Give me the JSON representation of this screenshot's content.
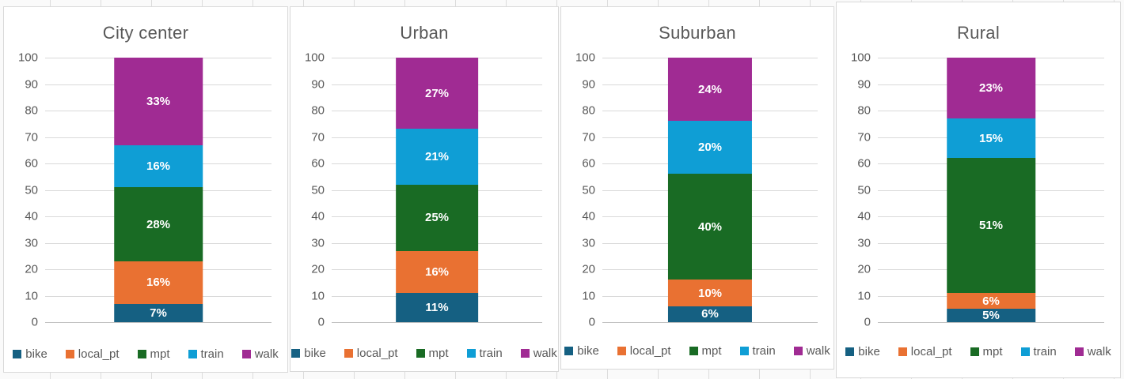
{
  "styles": {
    "title_color": "#595959",
    "axis_label_color": "#595959",
    "legend_text_color": "#595959",
    "data_label_color": "#FFFFFF",
    "gridline_color": "#D9D9D9",
    "zero_line_color": "#BFBFBF",
    "card_border_color": "#D9D9D9",
    "card_background": "#FFFFFF"
  },
  "series_colors": {
    "bike": "#156082",
    "local_pt": "#E97132",
    "mpt": "#196B24",
    "train": "#0F9ED5",
    "walk": "#A02B93"
  },
  "y_axis": {
    "ticks": [
      "100",
      "90",
      "80",
      "70",
      "60",
      "50",
      "40",
      "30",
      "20",
      "10",
      "0"
    ]
  },
  "chart_data": [
    {
      "type": "bar",
      "stacked": true,
      "title": "City center",
      "ylim": [
        0,
        100
      ],
      "ytick_step": 10,
      "grid": true,
      "legend_position": "bottom",
      "categories": [
        "City center"
      ],
      "series": [
        {
          "name": "bike",
          "values": [
            7
          ],
          "labels": [
            "7%"
          ]
        },
        {
          "name": "local_pt",
          "values": [
            16
          ],
          "labels": [
            "16%"
          ]
        },
        {
          "name": "mpt",
          "values": [
            28
          ],
          "labels": [
            "28%"
          ]
        },
        {
          "name": "train",
          "values": [
            16
          ],
          "labels": [
            "16%"
          ]
        },
        {
          "name": "walk",
          "values": [
            33
          ],
          "labels": [
            "33%"
          ]
        }
      ]
    },
    {
      "type": "bar",
      "stacked": true,
      "title": "Urban",
      "ylim": [
        0,
        100
      ],
      "ytick_step": 10,
      "grid": true,
      "legend_position": "bottom",
      "categories": [
        "Urban"
      ],
      "series": [
        {
          "name": "bike",
          "values": [
            11
          ],
          "labels": [
            "11%"
          ]
        },
        {
          "name": "local_pt",
          "values": [
            16
          ],
          "labels": [
            "16%"
          ]
        },
        {
          "name": "mpt",
          "values": [
            25
          ],
          "labels": [
            "25%"
          ]
        },
        {
          "name": "train",
          "values": [
            21
          ],
          "labels": [
            "21%"
          ]
        },
        {
          "name": "walk",
          "values": [
            27
          ],
          "labels": [
            "27%"
          ]
        }
      ]
    },
    {
      "type": "bar",
      "stacked": true,
      "title": "Suburban",
      "ylim": [
        0,
        100
      ],
      "ytick_step": 10,
      "grid": true,
      "legend_position": "bottom",
      "categories": [
        "Suburban"
      ],
      "series": [
        {
          "name": "bike",
          "values": [
            6
          ],
          "labels": [
            "6%"
          ]
        },
        {
          "name": "local_pt",
          "values": [
            10
          ],
          "labels": [
            "10%"
          ]
        },
        {
          "name": "mpt",
          "values": [
            40
          ],
          "labels": [
            "40%"
          ]
        },
        {
          "name": "train",
          "values": [
            20
          ],
          "labels": [
            "20%"
          ]
        },
        {
          "name": "walk",
          "values": [
            24
          ],
          "labels": [
            "24%"
          ]
        }
      ]
    },
    {
      "type": "bar",
      "stacked": true,
      "title": "Rural",
      "ylim": [
        0,
        100
      ],
      "ytick_step": 10,
      "grid": true,
      "legend_position": "bottom",
      "categories": [
        "Rural"
      ],
      "series": [
        {
          "name": "bike",
          "values": [
            5
          ],
          "labels": [
            "5%"
          ]
        },
        {
          "name": "local_pt",
          "values": [
            6
          ],
          "labels": [
            "6%"
          ]
        },
        {
          "name": "mpt",
          "values": [
            51
          ],
          "labels": [
            "51%"
          ]
        },
        {
          "name": "train",
          "values": [
            15
          ],
          "labels": [
            "15%"
          ]
        },
        {
          "name": "walk",
          "values": [
            23
          ],
          "labels": [
            "23%"
          ]
        }
      ]
    }
  ]
}
